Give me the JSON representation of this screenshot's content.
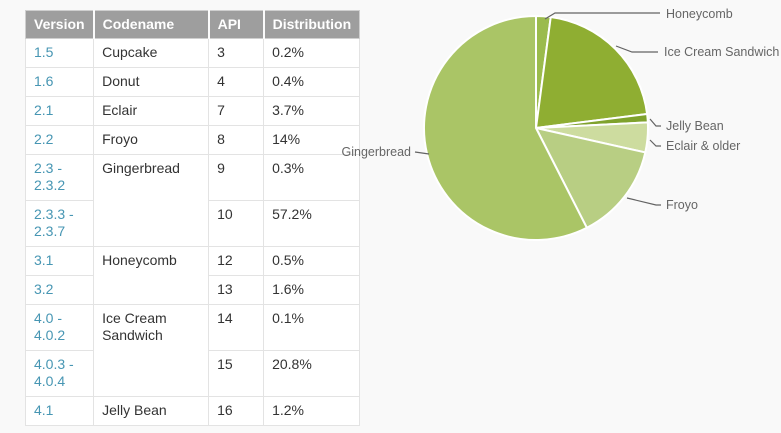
{
  "table": {
    "headers": [
      "Version",
      "Codename",
      "API",
      "Distribution"
    ],
    "rows": [
      {
        "version": "1.5",
        "codename": "Cupcake",
        "api": "3",
        "distribution": "0.2%"
      },
      {
        "version": "1.6",
        "codename": "Donut",
        "api": "4",
        "distribution": "0.4%"
      },
      {
        "version": "2.1",
        "codename": "Eclair",
        "api": "7",
        "distribution": "3.7%"
      },
      {
        "version": "2.2",
        "codename": "Froyo",
        "api": "8",
        "distribution": "14%"
      },
      {
        "version": "2.3 -\n2.3.2",
        "codename": "Gingerbread",
        "api": "9",
        "distribution": "0.3%"
      },
      {
        "version": "2.3.3 -\n2.3.7",
        "codename": null,
        "api": "10",
        "distribution": "57.2%"
      },
      {
        "version": "3.1",
        "codename": "Honeycomb",
        "api": "12",
        "distribution": "0.5%"
      },
      {
        "version": "3.2",
        "codename": null,
        "api": "13",
        "distribution": "1.6%"
      },
      {
        "version": "4.0 -\n4.0.2",
        "codename": "Ice Cream Sandwich",
        "api": "14",
        "distribution": "0.1%"
      },
      {
        "version": "4.0.3 -\n4.0.4",
        "codename": null,
        "api": "15",
        "distribution": "20.8%"
      },
      {
        "version": "4.1",
        "codename": "Jelly Bean",
        "api": "16",
        "distribution": "1.2%"
      }
    ]
  },
  "chart_data": {
    "type": "pie",
    "title": "",
    "legend_position": "outside-callout-labels",
    "stroke_color": "#ffffff",
    "label_color": "#666666",
    "slices": [
      {
        "label": "Honeycomb",
        "value": 2.1,
        "color": "#9bbb4d"
      },
      {
        "label": "Ice Cream Sandwich",
        "value": 20.9,
        "color": "#8fae32"
      },
      {
        "label": "Jelly Bean",
        "value": 1.2,
        "color": "#7fa22d"
      },
      {
        "label": "Eclair & older",
        "value": 4.3,
        "color": "#cddc9f"
      },
      {
        "label": "Froyo",
        "value": 14.0,
        "color": "#b8ce83"
      },
      {
        "label": "Gingerbread",
        "value": 57.5,
        "color": "#aac566"
      }
    ]
  },
  "colors": {
    "header_bg": "#9e9e9e",
    "header_text": "#ffffff",
    "version_link": "#4796b3",
    "body_text": "#333333",
    "page_bg": "#f9f9f9"
  }
}
